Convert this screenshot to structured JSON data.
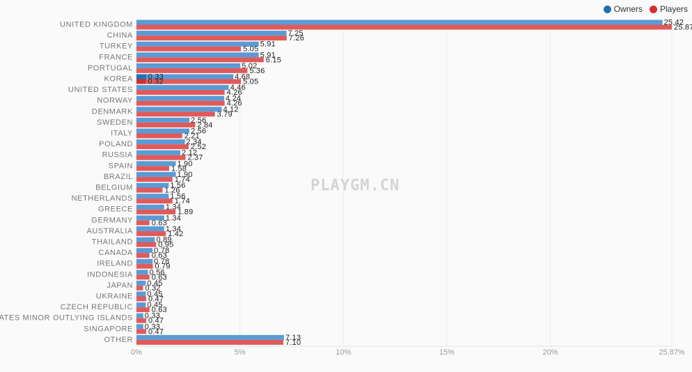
{
  "legend": {
    "owners_label": "Owners",
    "players_label": "Players"
  },
  "watermark": "PLAYGM.CN",
  "colors": {
    "owners": "#5b9bd5",
    "players": "#e05a5a",
    "owners_dot": "#1f6fb5",
    "players_dot": "#d32f2f"
  },
  "chart_data": {
    "type": "bar",
    "orientation": "horizontal",
    "categories": [
      "UNITED KINGDOM",
      "CHINA",
      "TURKEY",
      "FRANCE",
      "PORTUGAL",
      "KOREA",
      "UNITED STATES",
      "NORWAY",
      "DENMARK",
      "SWEDEN",
      "ITALY",
      "POLAND",
      "RUSSIA",
      "SPAIN",
      "BRAZIL",
      "BELGIUM",
      "NETHERLANDS",
      "GREECE",
      "GERMANY",
      "AUSTRALIA",
      "THAILAND",
      "CANADA",
      "IRELAND",
      "INDONESIA",
      "JAPAN",
      "UKRAINE",
      "CZECH REPUBLIC",
      "UNITED STATES MINOR OUTLYING ISLANDS",
      "SINGAPORE",
      "OTHER"
    ],
    "series": [
      {
        "name": "Owners",
        "values": [
          25.42,
          7.25,
          5.91,
          5.91,
          5.02,
          4.68,
          4.46,
          4.24,
          4.12,
          2.56,
          2.56,
          2.34,
          2.12,
          1.9,
          1.9,
          1.56,
          1.56,
          1.34,
          1.34,
          1.34,
          0.89,
          0.78,
          0.78,
          0.56,
          0.45,
          0.45,
          0.45,
          0.33,
          0.33,
          7.13
        ],
        "labels": [
          "25.42",
          "7.25",
          "5.91",
          "5.91",
          "5.02",
          "4.68",
          "4.46",
          "4.24",
          "4.12",
          "2.56",
          "2.56",
          "2.34",
          "2.12",
          "1.90",
          "1.90",
          "1.56",
          "1.56",
          "1.34",
          "1.34",
          "1.34",
          "0.89",
          "0.78",
          "0.78",
          "0.56",
          "0.45",
          "0.45",
          "0.45",
          "0.33",
          "0.33",
          "7.13"
        ]
      },
      {
        "name": "Players",
        "values": [
          25.87,
          7.26,
          5.05,
          6.15,
          5.36,
          5.05,
          4.26,
          4.26,
          3.79,
          2.84,
          2.21,
          2.52,
          2.37,
          1.58,
          1.74,
          1.26,
          1.74,
          1.89,
          0.63,
          1.42,
          0.95,
          0.63,
          0.79,
          0.63,
          0.32,
          0.47,
          0.63,
          0.47,
          0.47,
          7.1
        ],
        "labels": [
          "25.87",
          "7.26",
          "5.05",
          "6.15",
          "5.36",
          "5.05",
          "4.26",
          "4.26",
          "3.79",
          "2.84",
          "2.21",
          "2.52",
          "2.37",
          "1.58",
          "1.74",
          "1.26",
          "1.74",
          "1.89",
          "0.63",
          "1.42",
          "0.95",
          "0.63",
          "0.79",
          "0.63",
          "0.32",
          "0.47",
          "0.63",
          "0.47",
          "0.47",
          "7.10"
        ]
      }
    ],
    "special_marks": [
      {
        "category": "KOREA",
        "owners_value": 0.33,
        "owners_label": "0.33",
        "players_value": 0.32,
        "players_label": "0.32"
      }
    ],
    "xlim": [
      0,
      25.87
    ],
    "xticks": [
      0,
      5,
      10,
      15,
      20,
      25.87
    ],
    "xtick_labels": [
      "0%",
      "5%",
      "10%",
      "15%",
      "20%",
      "25.87%"
    ],
    "grid": true,
    "legend_position": "top-right"
  }
}
